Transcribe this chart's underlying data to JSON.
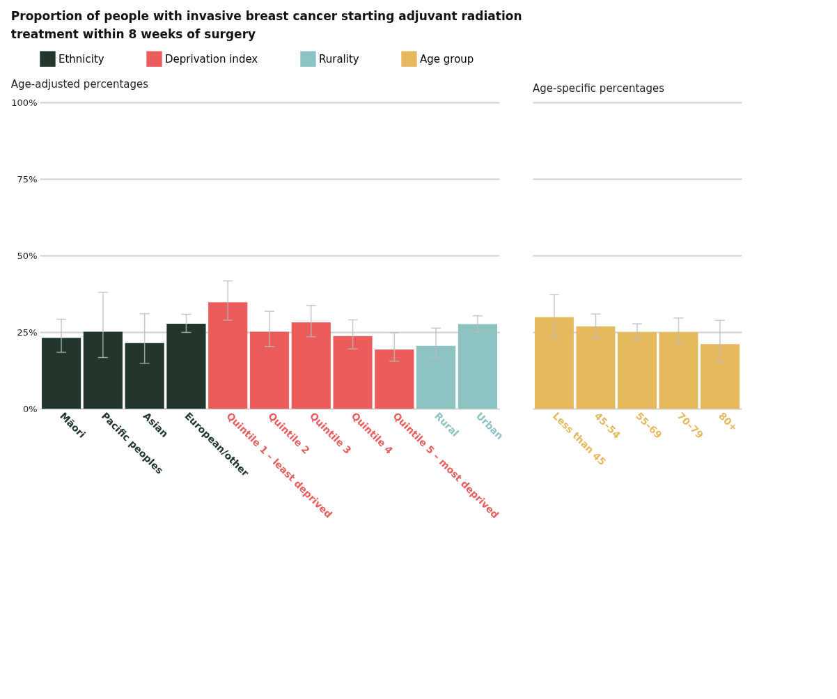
{
  "chart_data": [
    {
      "type": "bar",
      "title": "Proportion of people with invasive breast cancer starting adjuvant radiation treatment within 8 weeks of surgery",
      "subtitle": "Age-adjusted percentages",
      "categories": [
        "Māori",
        "Pacific peoples",
        "Asian",
        "European/other",
        "Quintile 1 – least deprived",
        "Quintile 2",
        "Quintile 3",
        "Quintile 4",
        "Quintile 5 – most deprived",
        "Rural",
        "Urban"
      ],
      "series": [
        {
          "name": "Ethnicity",
          "color": "#22372b",
          "values": [
            23.1,
            25.1,
            21.4,
            27.7,
            null,
            null,
            null,
            null,
            null,
            null,
            null
          ],
          "errors": [
            [
              18.4,
              29.2
            ],
            [
              16.7,
              38.0
            ],
            [
              14.8,
              31.0
            ],
            [
              24.9,
              30.8
            ],
            null,
            null,
            null,
            null,
            null,
            null,
            null
          ]
        },
        {
          "name": "Deprivation index",
          "color": "#eb5c5c",
          "values": [
            null,
            null,
            null,
            null,
            34.7,
            25.1,
            28.2,
            23.7,
            19.3,
            null,
            null
          ],
          "errors": [
            null,
            null,
            null,
            null,
            [
              28.9,
              41.7
            ],
            [
              20.3,
              31.8
            ],
            [
              23.5,
              33.7
            ],
            [
              19.5,
              29.0
            ],
            [
              15.5,
              24.8
            ],
            null,
            null
          ]
        },
        {
          "name": "Rurality",
          "color": "#8cc3c1",
          "values": [
            null,
            null,
            null,
            null,
            null,
            null,
            null,
            null,
            null,
            20.5,
            27.6
          ],
          "errors": [
            null,
            null,
            null,
            null,
            null,
            null,
            null,
            null,
            null,
            [
              16.7,
              26.3
            ],
            [
              25.0,
              30.3
            ]
          ]
        }
      ],
      "ylim": [
        0,
        100
      ],
      "yticks": [
        {
          "value": 0,
          "label": "0%"
        },
        {
          "value": 25,
          "label": "25%"
        },
        {
          "value": 50,
          "label": "50%"
        },
        {
          "value": 75,
          "label": "75%"
        },
        {
          "value": 100,
          "label": "100%"
        }
      ],
      "grid": "y",
      "legend": "top"
    },
    {
      "type": "bar",
      "subtitle": "Age-specific percentages",
      "categories": [
        "Less than 45",
        "45–54",
        "55–69",
        "70–79",
        "80+"
      ],
      "series": [
        {
          "name": "Age group",
          "color": "#e6b95f",
          "values": [
            29.9,
            26.9,
            25.0,
            25.0,
            21.1
          ],
          "errors": [
            [
              23.3,
              37.2
            ],
            [
              23.1,
              30.9
            ],
            [
              22.3,
              27.7
            ],
            [
              21.3,
              29.6
            ],
            [
              15.2,
              28.8
            ]
          ]
        }
      ],
      "ylim": [
        0,
        100
      ],
      "yticks": [
        0,
        25,
        50,
        75,
        100
      ],
      "grid": "y",
      "legend": "top",
      "tick_labels": "x"
    }
  ]
}
